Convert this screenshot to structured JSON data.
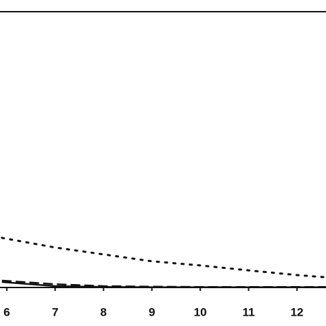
{
  "chart_data": {
    "type": "line",
    "x": [
      5.9,
      7,
      8,
      9,
      10,
      11,
      12,
      12.6
    ],
    "series": [
      {
        "color": "#111111",
        "style": "dotted",
        "values": [
          0.18,
          0.145,
          0.12,
          0.095,
          0.08,
          0.062,
          0.045,
          0.037
        ]
      },
      {
        "color": "#111111",
        "style": "dashed",
        "values": [
          0.025,
          0.012,
          0.005,
          0.003,
          0.002,
          0.002,
          0.002,
          0.002
        ]
      },
      {
        "color": "#111111",
        "style": "solid",
        "values": [
          0.02,
          0.005,
          0.002,
          0.001,
          0.001,
          0.001,
          0.001,
          0.001
        ]
      }
    ],
    "xlim": [
      5.86,
      12.6
    ],
    "xticks": [
      6,
      7,
      8,
      9,
      10,
      11,
      12
    ],
    "ylim": [
      0,
      1
    ]
  }
}
